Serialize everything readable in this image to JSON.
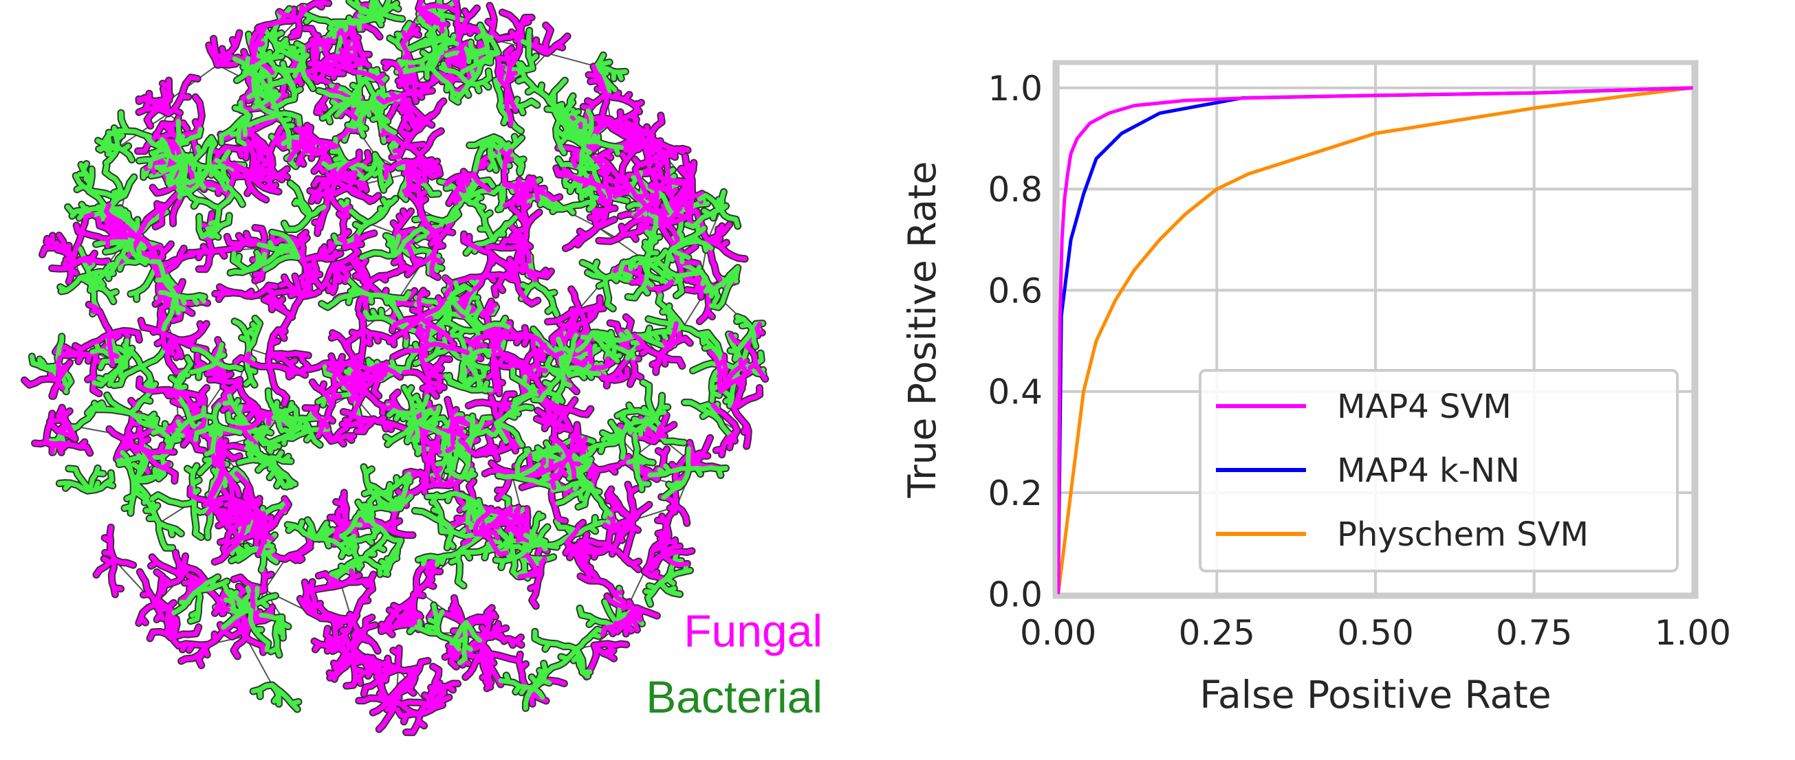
{
  "tree_map": {
    "legend": [
      {
        "label": "Fungal",
        "color": "#ff00ff"
      },
      {
        "label": "Bacterial",
        "color": "#228b22"
      }
    ],
    "node_colors": {
      "fungal": "#ff00ff",
      "bacterial": "#44ee44",
      "edge": "#555555"
    }
  },
  "chart_data": {
    "type": "line",
    "xlabel": "False Positive Rate",
    "ylabel": "True Positive Rate",
    "xlim": [
      -0.005,
      1.005
    ],
    "ylim": [
      -0.005,
      1.05
    ],
    "xticks": [
      "0.00",
      "0.25",
      "0.50",
      "0.75",
      "1.00"
    ],
    "yticks": [
      "0.0",
      "0.2",
      "0.4",
      "0.6",
      "0.8",
      "1.0"
    ],
    "grid": true,
    "legend_position": "lower-right",
    "series": [
      {
        "name": "MAP4 SVM",
        "color": "#ff00ff",
        "x": [
          0,
          0.003,
          0.006,
          0.01,
          0.015,
          0.02,
          0.03,
          0.05,
          0.08,
          0.12,
          0.2,
          0.3,
          0.5,
          0.75,
          1.0
        ],
        "y": [
          0,
          0.55,
          0.7,
          0.78,
          0.83,
          0.87,
          0.9,
          0.93,
          0.95,
          0.965,
          0.975,
          0.98,
          0.985,
          0.99,
          1.0
        ]
      },
      {
        "name": "MAP4 k-NN",
        "color": "#0000ff",
        "x": [
          0,
          0.005,
          0.02,
          0.04,
          0.06,
          0.1,
          0.16,
          0.29,
          0.5,
          0.75,
          1.0
        ],
        "y": [
          0,
          0.55,
          0.7,
          0.79,
          0.86,
          0.91,
          0.95,
          0.98,
          0.985,
          0.99,
          1.0
        ]
      },
      {
        "name": "Physchem SVM",
        "color": "#ff8c00",
        "x": [
          0,
          0.01,
          0.02,
          0.03,
          0.04,
          0.06,
          0.09,
          0.12,
          0.16,
          0.2,
          0.25,
          0.3,
          0.4,
          0.5,
          0.6,
          0.75,
          0.9,
          1.0
        ],
        "y": [
          0,
          0.1,
          0.2,
          0.3,
          0.4,
          0.5,
          0.58,
          0.64,
          0.7,
          0.75,
          0.8,
          0.83,
          0.87,
          0.91,
          0.93,
          0.96,
          0.985,
          1.0
        ]
      }
    ]
  }
}
